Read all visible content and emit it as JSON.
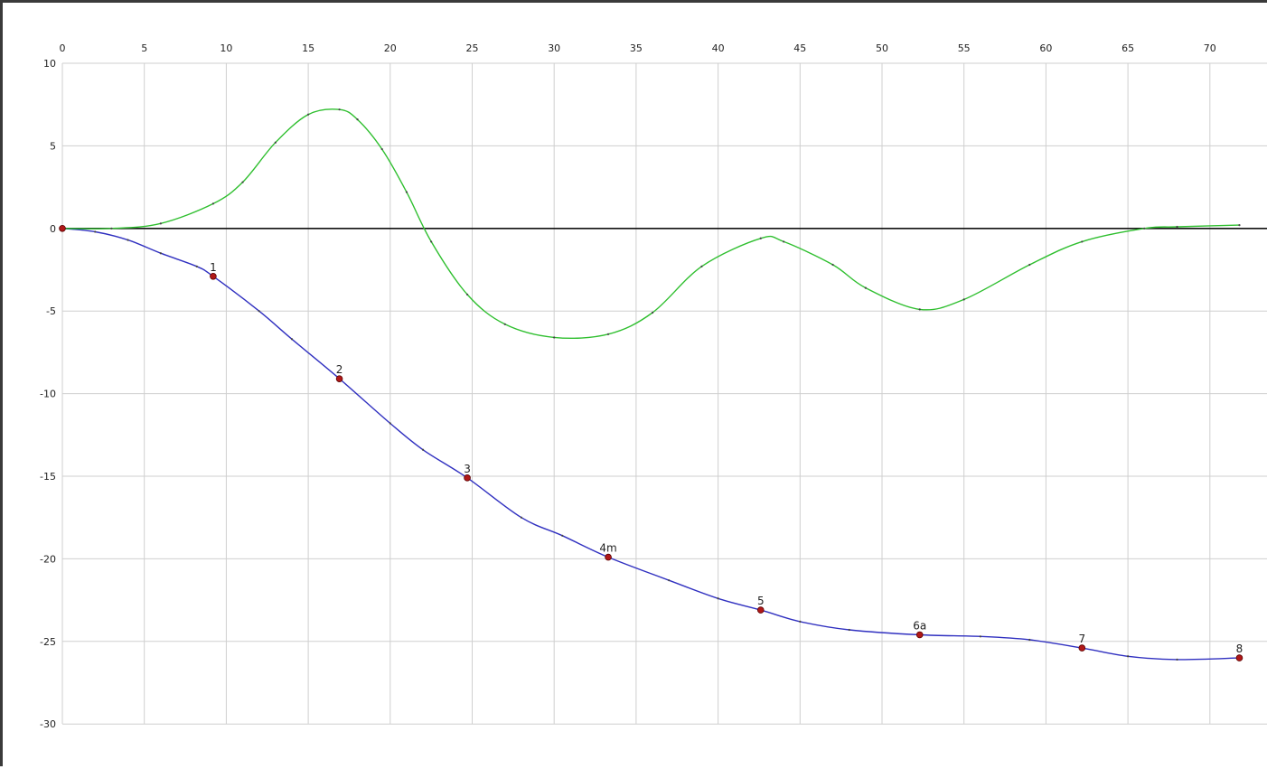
{
  "chart_data": {
    "type": "line",
    "title": "",
    "xlabel": "",
    "ylabel": "",
    "xlim": [
      0,
      72
    ],
    "ylim": [
      -30,
      10
    ],
    "x_ticks": [
      "0",
      "5",
      "10",
      "15",
      "20",
      "25",
      "30",
      "35",
      "40",
      "45",
      "50",
      "55",
      "60",
      "65",
      "70"
    ],
    "y_ticks": [
      "10",
      "5",
      "0",
      "-5",
      "-10",
      "-15",
      "-20",
      "-25",
      "-30"
    ],
    "grid": true,
    "legend": "none",
    "series": [
      {
        "color": "#3030c0",
        "x": [
          0,
          2,
          4,
          6,
          8.2,
          9.2,
          12,
          14,
          16.9,
          20,
          22,
          24.7,
          28,
          30.5,
          33.3,
          37,
          40,
          42.6,
          45,
          48,
          52.3,
          56,
          59,
          62.2,
          65,
          68,
          71.8
        ],
        "y": [
          0,
          -0.2,
          -0.7,
          -1.5,
          -2.3,
          -2.9,
          -5.0,
          -6.7,
          -9.1,
          -11.8,
          -13.4,
          -15.1,
          -17.5,
          -18.6,
          -19.9,
          -21.3,
          -22.4,
          -23.1,
          -23.8,
          -24.3,
          -24.6,
          -24.7,
          -24.9,
          -25.4,
          -25.9,
          -26.1,
          -26.0
        ],
        "markers": [
          {
            "x": 0,
            "y": 0,
            "label": ""
          },
          {
            "x": 9.2,
            "y": -2.9,
            "label": "1"
          },
          {
            "x": 16.9,
            "y": -9.1,
            "label": "2"
          },
          {
            "x": 24.7,
            "y": -15.1,
            "label": "3"
          },
          {
            "x": 33.3,
            "y": -19.9,
            "label": "4m"
          },
          {
            "x": 42.6,
            "y": -23.1,
            "label": "5"
          },
          {
            "x": 52.3,
            "y": -24.6,
            "label": "6a"
          },
          {
            "x": 62.2,
            "y": -25.4,
            "label": "7"
          },
          {
            "x": 71.8,
            "y": -26.0,
            "label": "8"
          }
        ]
      },
      {
        "color": "#2fbf2f",
        "x": [
          0,
          3,
          6,
          9.2,
          11,
          13,
          15,
          16.9,
          18,
          19.5,
          21,
          22.5,
          24.7,
          27,
          30,
          33.3,
          36,
          39,
          42.6,
          44,
          47,
          49,
          52.3,
          55,
          59,
          62.2,
          66,
          68,
          71.8
        ],
        "y": [
          0,
          0,
          0.3,
          1.5,
          2.8,
          5.2,
          6.9,
          7.2,
          6.6,
          4.8,
          2.2,
          -0.8,
          -4.0,
          -5.8,
          -6.6,
          -6.4,
          -5.1,
          -2.3,
          -0.6,
          -0.8,
          -2.2,
          -3.6,
          -4.9,
          -4.3,
          -2.2,
          -0.8,
          0,
          0.1,
          0.2
        ]
      }
    ]
  }
}
